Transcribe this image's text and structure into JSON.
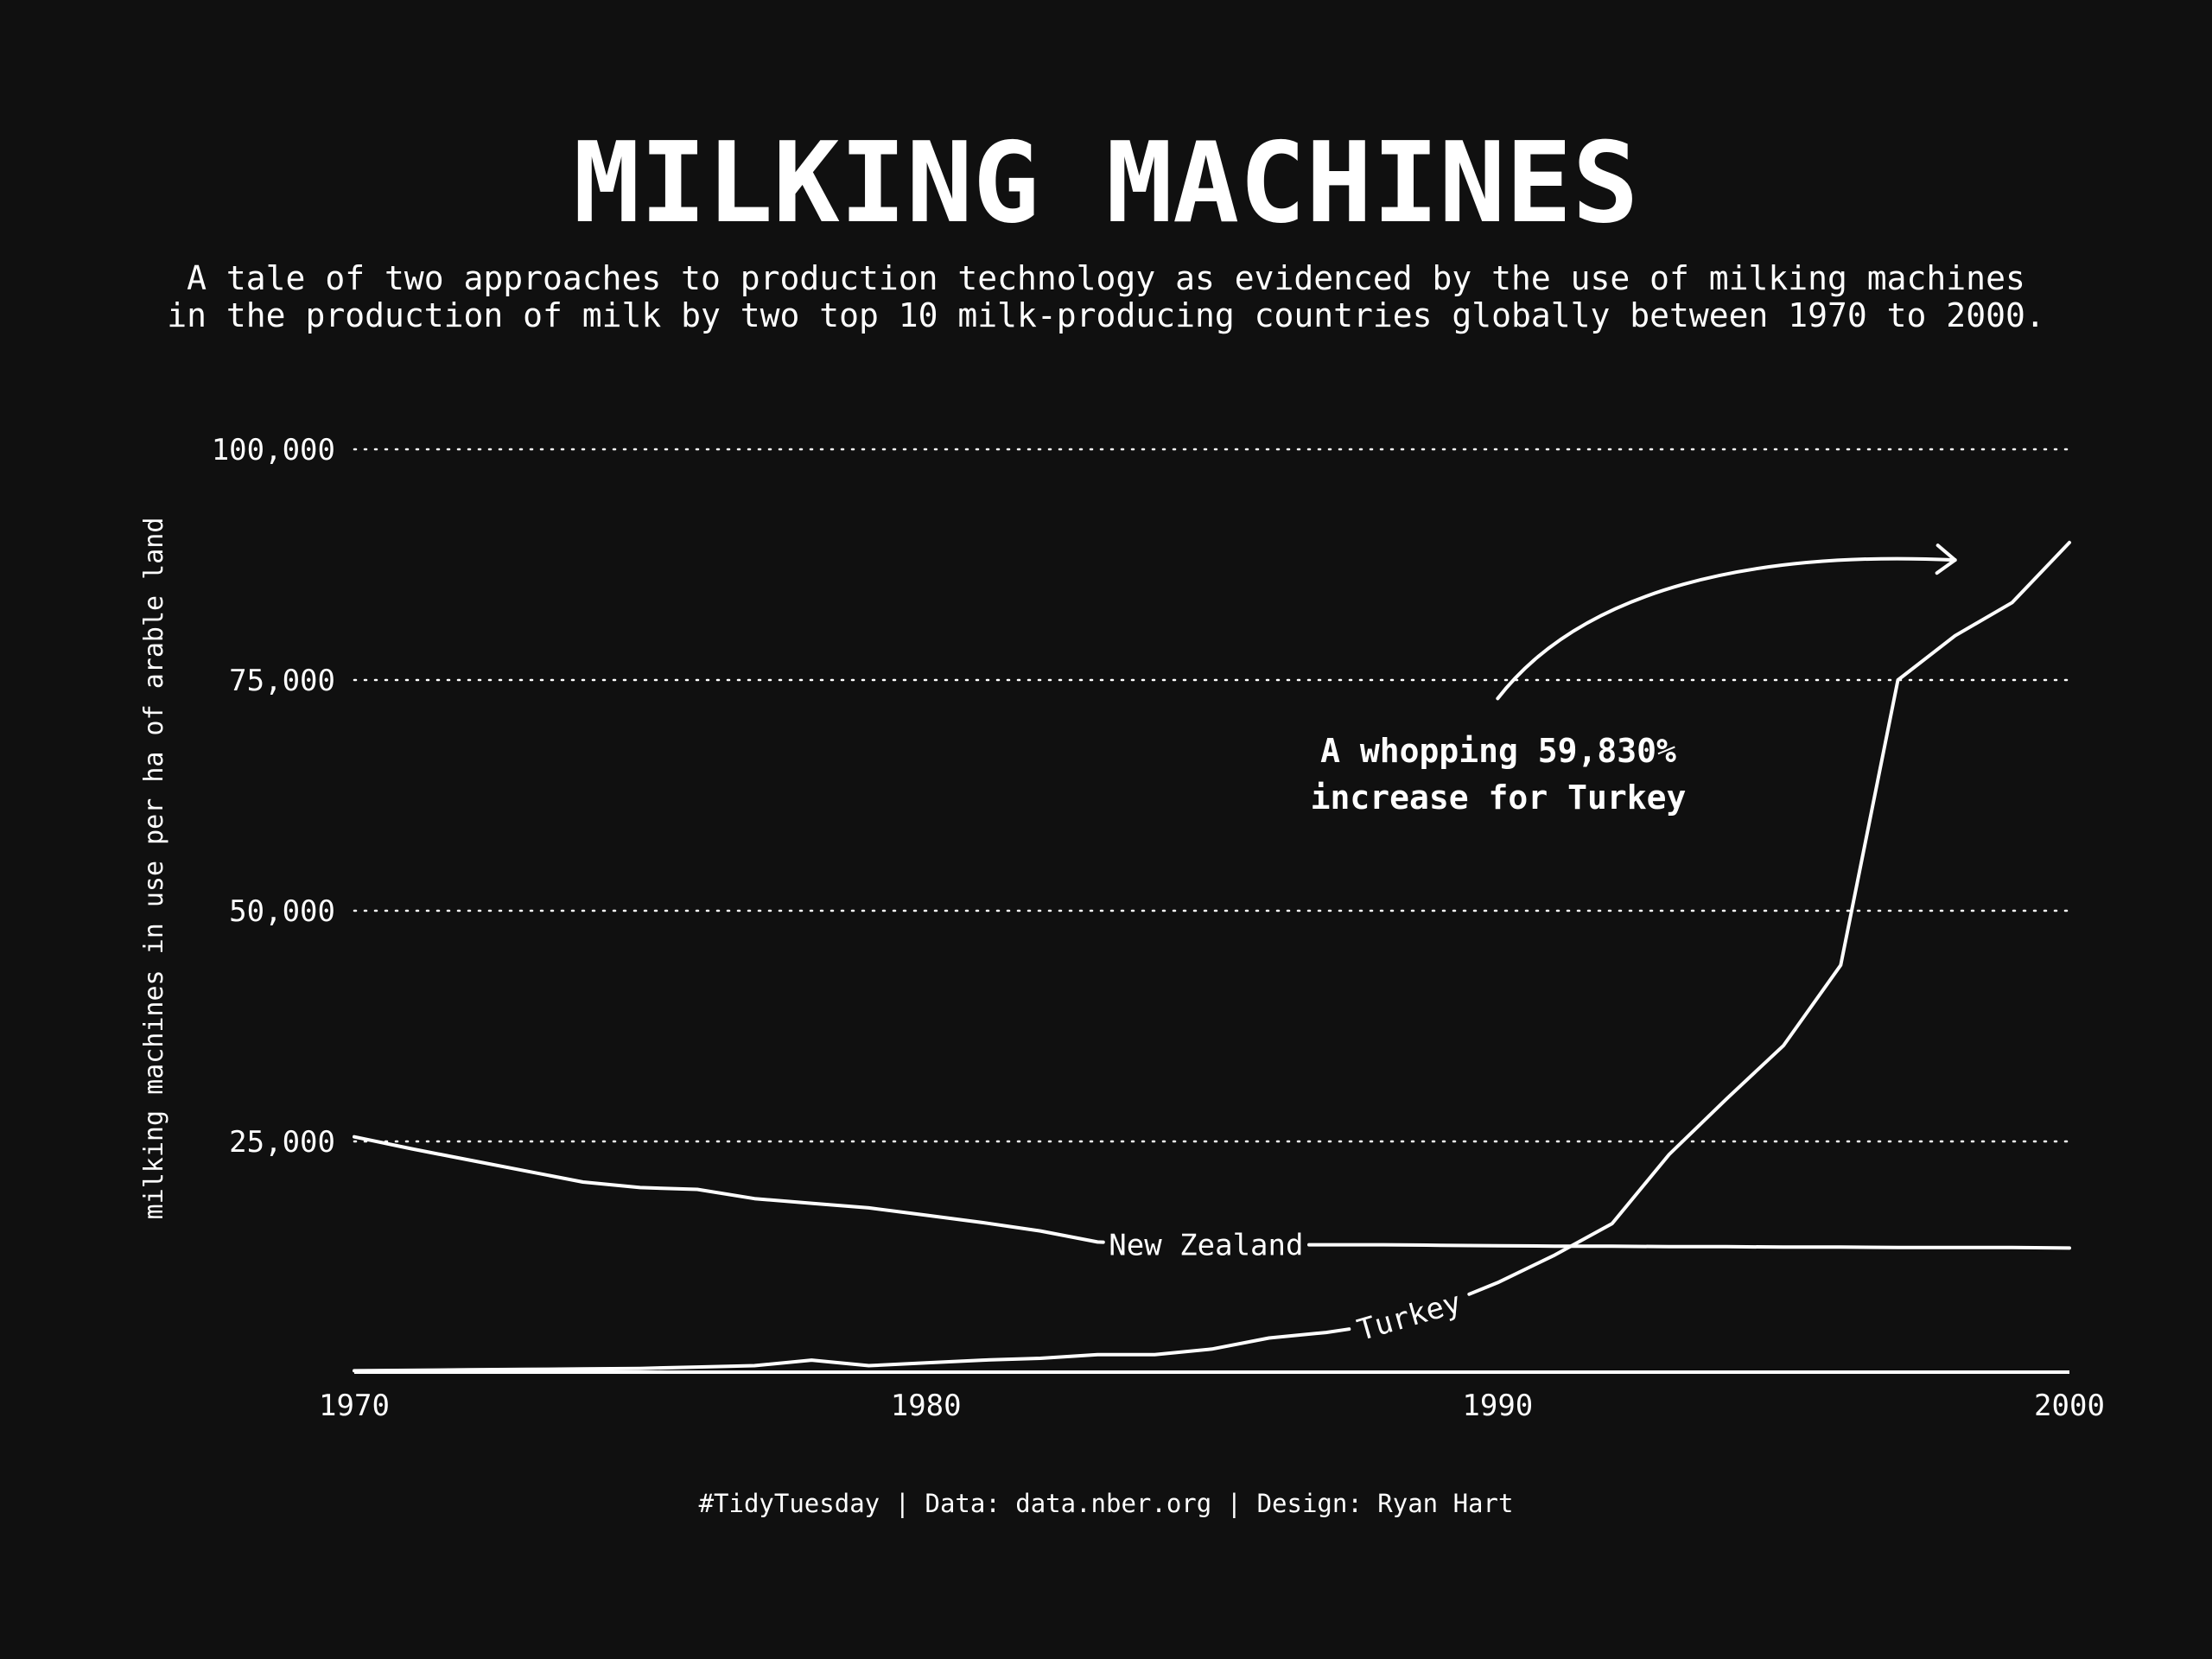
{
  "title": "MILKING MACHINES",
  "subtitle_lines": [
    "A tale of two approaches to production technology as evidenced by the use of milking machines",
    "in the production of milk by two top 10 milk-producing countries globally between 1970 to 2000."
  ],
  "caption": "#TidyTuesday | Data: data.nber.org | Design: Ryan Hart",
  "annotation_lines": [
    "A whopping 59,830%",
    "increase for Turkey"
  ],
  "colors": {
    "background": "#101010",
    "foreground": "#ffffff"
  },
  "chart_data": {
    "type": "line",
    "title": "MILKING MACHINES",
    "xlabel": "",
    "ylabel": "milking machines in use per ha of arable land",
    "xlim": [
      1970,
      2000
    ],
    "ylim": [
      0,
      100000
    ],
    "xticks": [
      1970,
      1980,
      1990,
      2000
    ],
    "yticks": [
      25000,
      50000,
      75000,
      100000
    ],
    "ytick_labels": [
      "25,000",
      "50,000",
      "75,000",
      "100,000"
    ],
    "grid": "horizontal dotted",
    "legend": "direct labels on lines",
    "series": [
      {
        "name": "New Zealand",
        "x": [
          1970,
          1971,
          1972,
          1973,
          1974,
          1975,
          1976,
          1977,
          1978,
          1979,
          1980,
          1981,
          1982,
          1983,
          1984,
          1985,
          1986,
          1987,
          1988,
          1989,
          1990,
          1991,
          1992,
          1993,
          1994,
          1995,
          1996,
          1997,
          1998,
          1999,
          2000
        ],
        "values": [
          25500,
          24200,
          23000,
          21800,
          20600,
          20000,
          19800,
          18800,
          18300,
          17800,
          17000,
          16200,
          15300,
          14100,
          13900,
          13800,
          13800,
          13800,
          13800,
          13750,
          13700,
          13650,
          13650,
          13600,
          13600,
          13550,
          13550,
          13500,
          13500,
          13500,
          13450
        ]
      },
      {
        "name": "Turkey",
        "x": [
          1970,
          1971,
          1972,
          1973,
          1974,
          1975,
          1976,
          1977,
          1978,
          1979,
          1980,
          1981,
          1982,
          1983,
          1984,
          1985,
          1986,
          1987,
          1988,
          1989,
          1990,
          1991,
          1992,
          1993,
          1994,
          1995,
          1996,
          1997,
          1998,
          1999,
          2000
        ],
        "values": [
          150,
          200,
          250,
          300,
          350,
          400,
          550,
          700,
          1300,
          700,
          1000,
          1300,
          1500,
          1900,
          1900,
          2500,
          3700,
          4300,
          5200,
          7200,
          9700,
          12700,
          16100,
          23600,
          29600,
          35400,
          44100,
          75000,
          79800,
          83400,
          89900
        ]
      }
    ]
  }
}
